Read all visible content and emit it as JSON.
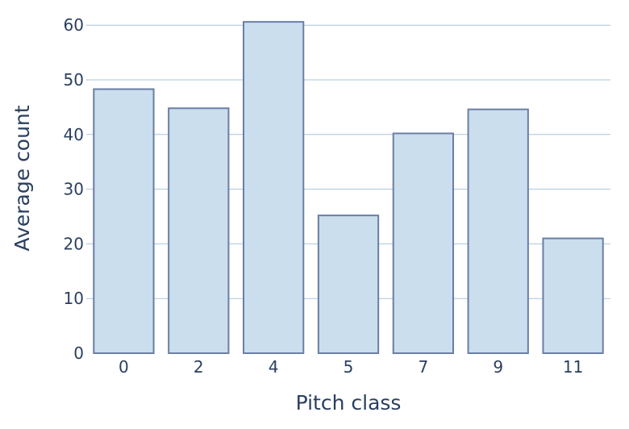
{
  "chart_data": {
    "type": "bar",
    "categories": [
      "0",
      "2",
      "4",
      "5",
      "7",
      "9",
      "11"
    ],
    "values": [
      48.3,
      44.8,
      60.6,
      25.2,
      40.2,
      44.6,
      21.0
    ],
    "title": "",
    "xlabel": "Pitch class",
    "ylabel": "Average count",
    "ylim": [
      0,
      62
    ],
    "yticks": [
      0,
      10,
      20,
      30,
      40,
      50,
      60
    ],
    "grid": true,
    "colors": {
      "bar_fill": "#cadeed",
      "bar_stroke": "#6b7ea6",
      "grid": "#a9c6db",
      "text": "#2a3f5f"
    }
  }
}
